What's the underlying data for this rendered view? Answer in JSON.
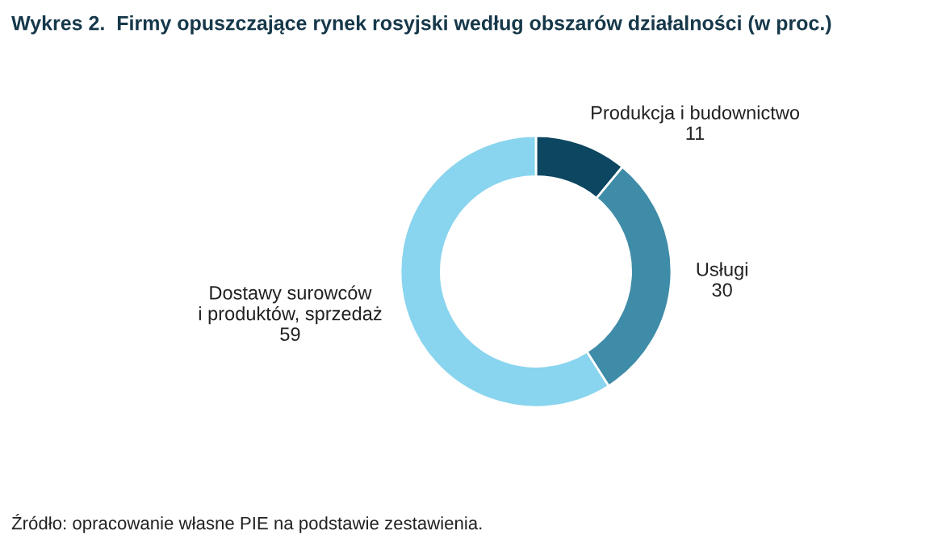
{
  "chart_data": {
    "type": "donut",
    "title": "Wykres 2.  Firmy opuszczające rynek rosyjski według obszarów działalności (w proc.)",
    "categories": [
      "Produkcja i budownictwo",
      "Usługi",
      "Dostawy surowców\ni produktów, sprzedaż"
    ],
    "values": [
      11,
      30,
      59
    ],
    "colors": [
      "#0d4661",
      "#3f8ca8",
      "#89d4ee"
    ],
    "data_labels": true,
    "annotations": [
      "Źródło: opracowanie własne PIE na podstawie zestawienia."
    ]
  }
}
